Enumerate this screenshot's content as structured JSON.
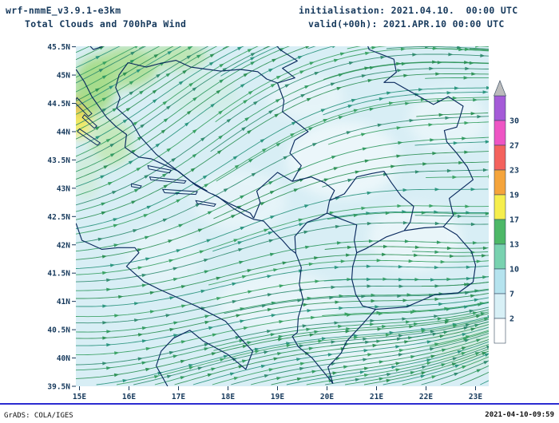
{
  "header": {
    "model": "wrf-nmmE_v3.9.1-e3km",
    "product": "Total Clouds and 700hPa Wind",
    "init": "initialisation: 2021.04.10.  00:00 UTC",
    "valid": "valid(+00h): 2021.APR.10 00:00 UTC"
  },
  "axes": {
    "lat_labels": [
      "45.5N",
      "45N",
      "44.5N",
      "44N",
      "43.5N",
      "43N",
      "42.5N",
      "42N",
      "41.5N",
      "41N",
      "40.5N",
      "40N",
      "39.5N"
    ],
    "lon_labels": [
      "15E",
      "16E",
      "17E",
      "18E",
      "19E",
      "20E",
      "21E",
      "22E",
      "23E"
    ]
  },
  "colorbar": {
    "labels_top_to_bottom": [
      "30",
      "27",
      "23",
      "19",
      "17",
      "13",
      "10",
      "7",
      "2"
    ],
    "segment_colors_top_to_bottom": [
      "#a55bd8",
      "#ee55c4",
      "#f4625d",
      "#f5a43b",
      "#f6ee4d",
      "#4db867",
      "#79d2b0",
      "#b5e3ee",
      "#d8f0f6",
      "#ffffff"
    ],
    "arrow_color": "#bcbcbc"
  },
  "footer": {
    "left": "GrADS: COLA/IGES",
    "right": "2021-04-10-09:59"
  },
  "style": {
    "text_color": "#16395c",
    "border_color": "#0a2a5e",
    "sea_color": "#d8eef5",
    "divider_color": "#2b2bd0",
    "stream_colors": [
      "#2f9960",
      "#2a8f53",
      "#27937c",
      "#36a061",
      "#2e8a6e"
    ]
  }
}
